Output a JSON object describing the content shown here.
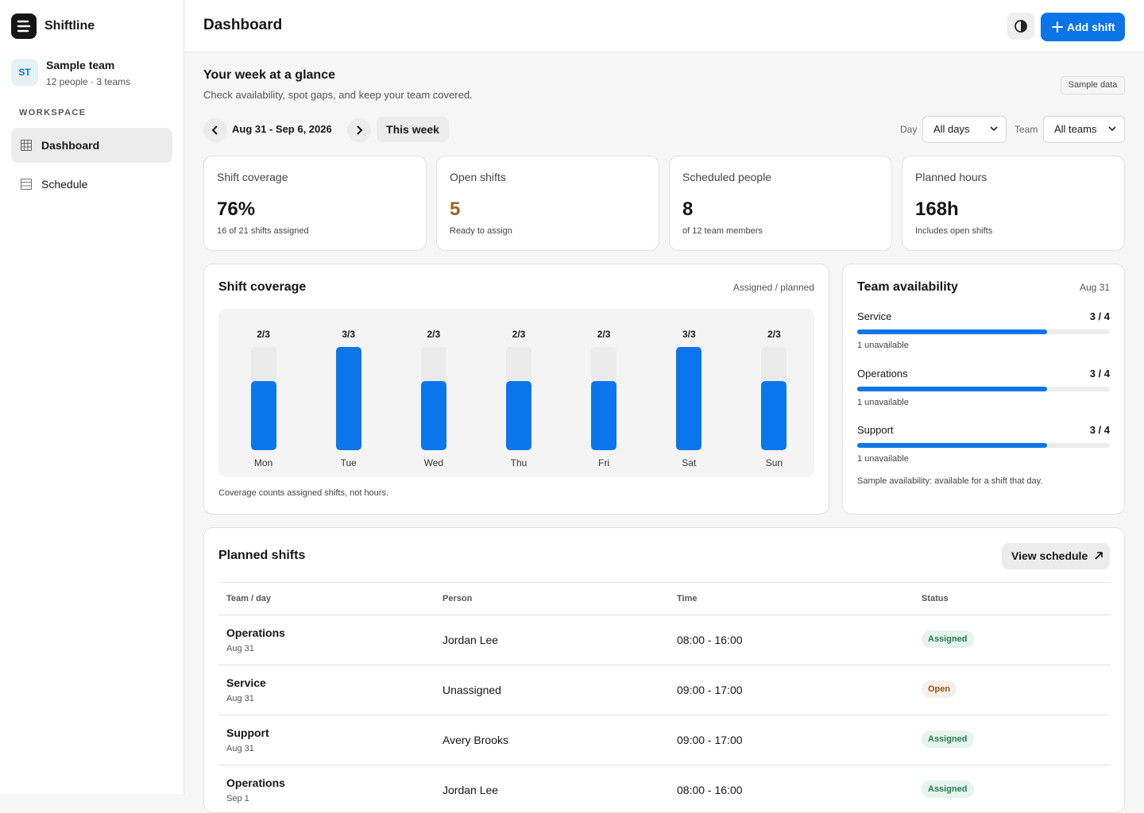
{
  "app": {
    "name": "Shiftline"
  },
  "team": {
    "initials": "ST",
    "name": "Sample team",
    "meta": "12 people · 3 teams"
  },
  "nav": {
    "section": "WORKSPACE",
    "items": [
      "Dashboard",
      "Schedule"
    ]
  },
  "header": {
    "title": "Dashboard",
    "add_button": "Add shift"
  },
  "intro": {
    "title": "Your week at a glance",
    "subtitle": "Check availability, spot gaps, and keep your team covered.",
    "badge": "Sample data"
  },
  "filters": {
    "range": "Aug 31 - Sep 6, 2026",
    "this_week": "This week",
    "day_label": "Day",
    "day_value": "All days",
    "team_label": "Team",
    "team_value": "All teams"
  },
  "stats": [
    {
      "label": "Shift coverage",
      "value": "76%",
      "note": "16 of 21 shifts assigned"
    },
    {
      "label": "Open shifts",
      "value": "5",
      "note": "Ready to assign"
    },
    {
      "label": "Scheduled people",
      "value": "8",
      "note": "of 12 team members"
    },
    {
      "label": "Planned hours",
      "value": "168h",
      "note": "Includes open shifts"
    }
  ],
  "coverage": {
    "title": "Shift coverage",
    "legend": "Assigned / planned",
    "days": [
      "Mon",
      "Tue",
      "Wed",
      "Thu",
      "Fri",
      "Sat",
      "Sun"
    ],
    "assigned": [
      2,
      3,
      2,
      2,
      2,
      3,
      2
    ],
    "planned": [
      3,
      3,
      3,
      3,
      3,
      3,
      3
    ],
    "labels": [
      "2/3",
      "3/3",
      "2/3",
      "2/3",
      "2/3",
      "3/3",
      "2/3"
    ],
    "footnote": "Coverage counts assigned shifts, not hours."
  },
  "availability": {
    "title": "Team availability",
    "date": "Aug 31",
    "teams": [
      {
        "name": "Service",
        "available": 3,
        "total": 4,
        "label": "3 / 4",
        "note": "1 unavailable"
      },
      {
        "name": "Operations",
        "available": 3,
        "total": 4,
        "label": "3 / 4",
        "note": "1 unavailable"
      },
      {
        "name": "Support",
        "available": 3,
        "total": 4,
        "label": "3 / 4",
        "note": "1 unavailable"
      }
    ],
    "footnote": "Sample availability: available for a shift that day."
  },
  "shifts": {
    "title": "Planned shifts",
    "button": "View schedule",
    "columns": [
      "Team / day",
      "Person",
      "Time",
      "Status"
    ],
    "rows": [
      {
        "team": "Operations",
        "date": "Aug 31",
        "person": "Jordan Lee",
        "time": "08:00 - 16:00",
        "status": "Assigned"
      },
      {
        "team": "Service",
        "date": "Aug 31",
        "person": "Unassigned",
        "time": "09:00 - 17:00",
        "status": "Open"
      },
      {
        "team": "Support",
        "date": "Aug 31",
        "person": "Avery Brooks",
        "time": "09:00 - 17:00",
        "status": "Assigned"
      },
      {
        "team": "Operations",
        "date": "Sep 1",
        "person": "Jordan Lee",
        "time": "08:00 - 16:00",
        "status": "Assigned"
      }
    ]
  }
}
